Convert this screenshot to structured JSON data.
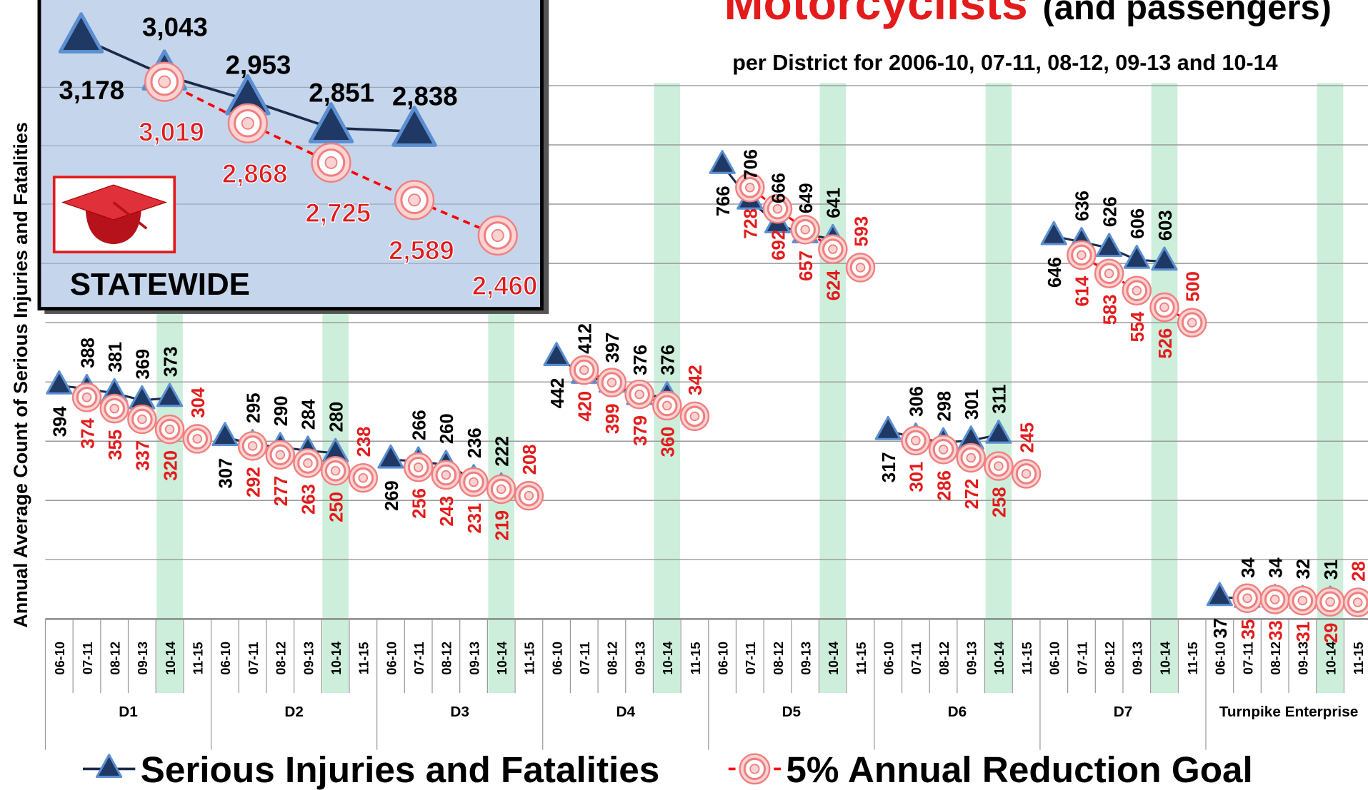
{
  "chart_data": [
    {
      "type": "line",
      "title": "Motorcyclists",
      "title_suffix": "(and passengers)",
      "subtitle": "per District for 2006-10, 07-11, 08-12, 09-13 and 10-14",
      "y_label": "Annual Average Count of Serious Injuries and Fatalities",
      "groups": [
        "D1",
        "D2",
        "D3",
        "D4",
        "D5",
        "D6",
        "D7",
        "Turnpike Enterprise"
      ],
      "categories": [
        "06-10",
        "07-11",
        "08-12",
        "09-13",
        "10-14",
        "11-15",
        "06-10",
        "07-11",
        "08-12",
        "09-13",
        "10-14",
        "11-15",
        "06-10",
        "07-11",
        "08-12",
        "09-13",
        "10-14",
        "11-15",
        "06-10",
        "07-11",
        "08-12",
        "09-13",
        "10-14",
        "11-15",
        "06-10",
        "07-11",
        "08-12",
        "09-13",
        "10-14",
        "11-15",
        "06-10",
        "07-11",
        "08-12",
        "09-13",
        "10-14",
        "11-15",
        "06-10",
        "07-11",
        "08-12",
        "09-13",
        "10-14",
        "11-15",
        "06-10",
        "07-11",
        "08-12",
        "09-13",
        "10-14",
        "11-15"
      ],
      "highlight_category": "10-14",
      "series": [
        {
          "name": "Serious Injuries and Fatalities",
          "color": "#1b2a4a",
          "marker": "triangle",
          "values": [
            394,
            388,
            381,
            369,
            373,
            null,
            307,
            295,
            290,
            284,
            280,
            null,
            269,
            266,
            260,
            236,
            222,
            null,
            442,
            412,
            397,
            376,
            376,
            null,
            766,
            706,
            666,
            649,
            641,
            null,
            317,
            306,
            298,
            301,
            311,
            null,
            646,
            636,
            626,
            606,
            603,
            null,
            37,
            34,
            34,
            32,
            31,
            null
          ]
        },
        {
          "name": "5% Annual Reduction Goal",
          "color": "#ff0000",
          "marker": "ring",
          "dashed": true,
          "values": [
            null,
            374,
            355,
            337,
            320,
            304,
            null,
            292,
            277,
            263,
            250,
            238,
            null,
            256,
            243,
            231,
            219,
            208,
            null,
            420,
            399,
            379,
            360,
            342,
            null,
            728,
            692,
            657,
            624,
            593,
            null,
            301,
            286,
            272,
            258,
            245,
            null,
            614,
            583,
            554,
            526,
            500,
            null,
            35,
            33,
            31,
            29,
            28
          ]
        }
      ],
      "ylim": [
        0,
        1000
      ],
      "yticks": [
        0,
        100,
        200,
        300,
        400,
        500,
        600,
        700,
        800,
        900
      ],
      "grid": true
    },
    {
      "type": "line",
      "title": "STATEWIDE",
      "series": [
        {
          "name": "Serious Injuries and Fatalities",
          "color": "#1b2a4a",
          "marker": "triangle",
          "values": [
            3178,
            3043,
            2953,
            2851,
            2838,
            null
          ],
          "value_labels": [
            "3,178",
            "3,043",
            "2,953",
            "2,851",
            "2,838",
            null
          ]
        },
        {
          "name": "5% Annual Reduction Goal",
          "color": "#ff0000",
          "marker": "ring",
          "dashed": true,
          "values": [
            null,
            3019,
            2868,
            2725,
            2589,
            2460
          ],
          "value_labels": [
            null,
            "3,019",
            "2,868",
            "2,725",
            "2,589",
            "2,460"
          ]
        }
      ],
      "ylim": [
        2200,
        3300
      ]
    }
  ]
}
